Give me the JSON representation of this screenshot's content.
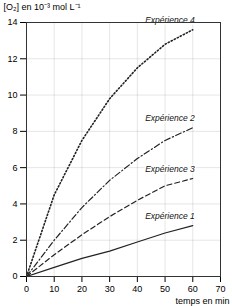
{
  "chart_data": {
    "type": "line",
    "x_label": "temps en min",
    "y_label": "[O₂] en 10⁻³ mol L⁻¹",
    "x": [
      0,
      10,
      20,
      30,
      40,
      50,
      60
    ],
    "series": [
      {
        "name": "Expérience 4",
        "color": "#222222",
        "line_style": "dotted",
        "values": [
          0,
          4.5,
          7.5,
          9.8,
          11.5,
          12.8,
          13.6
        ]
      },
      {
        "name": "Expérience 2",
        "color": "#222222",
        "line_style": "dashdot",
        "values": [
          0,
          2,
          3.8,
          5.3,
          6.5,
          7.5,
          8.2
        ]
      },
      {
        "name": "Expérience 3",
        "color": "#222222",
        "line_style": "dashed",
        "values": [
          0,
          1.2,
          2.3,
          3.3,
          4.2,
          5,
          5.4
        ]
      },
      {
        "name": "Expérience 1",
        "color": "#222222",
        "line_style": "solid",
        "values": [
          0,
          0.5,
          1,
          1.4,
          1.9,
          2.4,
          2.8
        ]
      }
    ],
    "xlim": [
      0,
      70
    ],
    "ylim": [
      0,
      14
    ],
    "xticks": [
      0,
      10,
      20,
      30,
      40,
      50,
      60,
      70
    ],
    "yticks": [
      0,
      2,
      4,
      6,
      8,
      10,
      12,
      14
    ],
    "grid": true
  }
}
